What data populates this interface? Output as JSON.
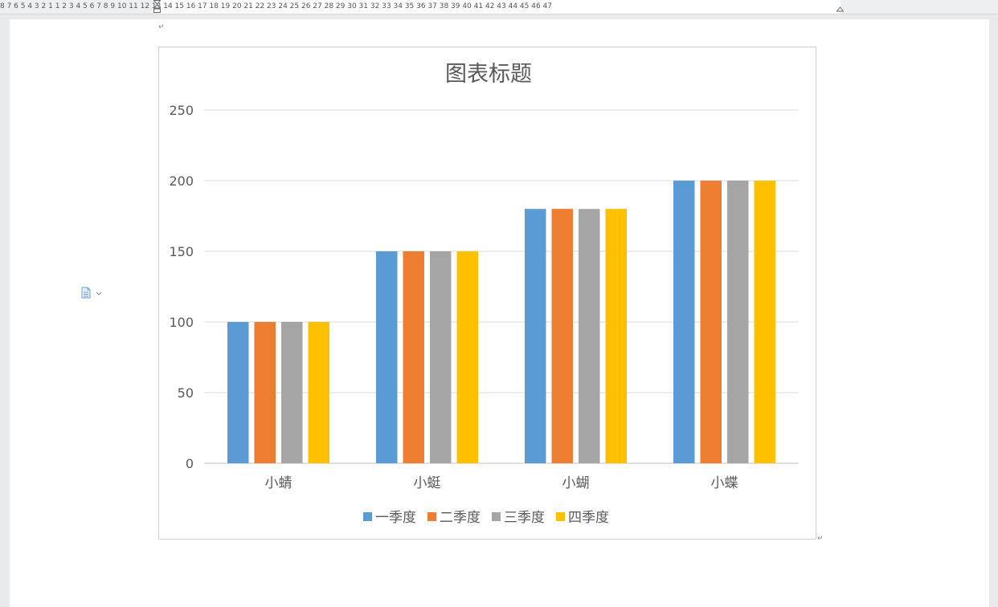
{
  "ruler": {
    "text": "8 7 6 5 4 3 2 1 1 2 3 4 5 6 7 8 9 10 11 12 13 14 15 16 17 18 19 20 21 22 23 24 25 26 27 28 29 30 31 32 33 34 35 36 37 38 39 40 41 42 43 44 45 46 47"
  },
  "paragraph_marks": {
    "top": "↵",
    "bottom": "↵"
  },
  "icons": {
    "layout": "layout-options-icon",
    "dropdown": "chevron-down-icon"
  },
  "chart_data": {
    "type": "bar",
    "title": "图表标题",
    "categories": [
      "小蜻",
      "小蜓",
      "小蝴",
      "小蝶"
    ],
    "series": [
      {
        "name": "一季度",
        "color": "#5b9bd5",
        "values": [
          100,
          150,
          180,
          200
        ]
      },
      {
        "name": "二季度",
        "color": "#ed7d31",
        "values": [
          100,
          150,
          180,
          200
        ]
      },
      {
        "name": "三季度",
        "color": "#a5a5a5",
        "values": [
          100,
          150,
          180,
          200
        ]
      },
      {
        "name": "四季度",
        "color": "#ffc000",
        "values": [
          100,
          150,
          180,
          200
        ]
      }
    ],
    "ylim": [
      0,
      250
    ],
    "yticks": [
      0,
      50,
      100,
      150,
      200,
      250
    ],
    "grid": true,
    "legend": "bottom",
    "xlabel": "",
    "ylabel": ""
  }
}
